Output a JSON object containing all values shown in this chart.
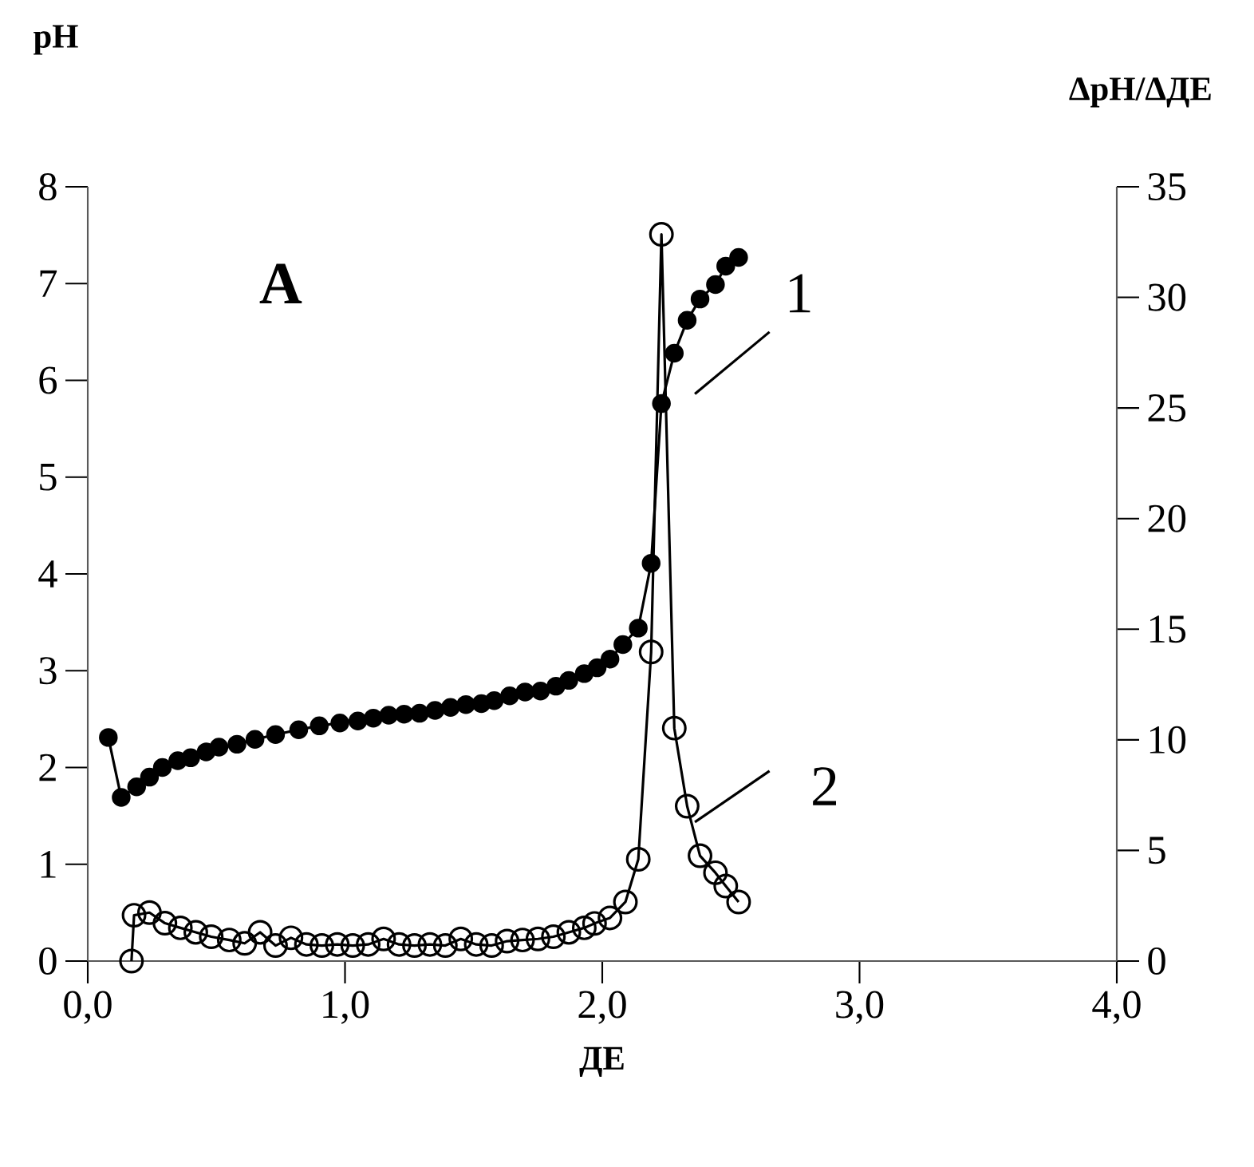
{
  "chart_data": {
    "type": "line",
    "xlabel": "ДЕ",
    "ylabel": "pH",
    "y2label": "ΔpH/ΔДЕ",
    "annotations": [
      "A"
    ],
    "xlim": [
      0,
      4
    ],
    "xticks": [
      {
        "value": 0,
        "label": "0,0"
      },
      {
        "value": 1,
        "label": "1,0"
      },
      {
        "value": 2,
        "label": "2,0"
      },
      {
        "value": 3,
        "label": "3,0"
      },
      {
        "value": 4,
        "label": "4,0"
      }
    ],
    "ylim": [
      0,
      8
    ],
    "yticks": [
      0,
      1,
      2,
      3,
      4,
      5,
      6,
      7,
      8
    ],
    "y2lim": [
      0,
      35
    ],
    "y2ticks": [
      0,
      5,
      10,
      15,
      20,
      25,
      30,
      35
    ],
    "grid": false,
    "marker": "circle",
    "line_style": "solid",
    "series": [
      {
        "name": "1",
        "color": "#000000",
        "x": [
          0.08,
          0.13,
          0.19,
          0.24,
          0.29,
          0.35,
          0.4,
          0.46,
          0.51,
          0.58,
          0.65,
          0.73,
          0.82,
          0.9,
          0.98,
          1.05,
          1.11,
          1.17,
          1.23,
          1.29,
          1.35,
          1.41,
          1.47,
          1.53,
          1.58,
          1.64,
          1.7,
          1.76,
          1.82,
          1.87,
          1.93,
          1.98,
          2.03,
          2.08,
          2.14,
          2.19,
          2.23,
          2.28,
          2.33,
          2.38,
          2.44,
          2.48,
          2.53
        ],
        "values": [
          2.31,
          1.69,
          1.8,
          1.9,
          2.0,
          2.07,
          2.1,
          2.16,
          2.21,
          2.24,
          2.29,
          2.34,
          2.39,
          2.43,
          2.46,
          2.48,
          2.51,
          2.54,
          2.55,
          2.56,
          2.59,
          2.62,
          2.65,
          2.66,
          2.69,
          2.74,
          2.78,
          2.79,
          2.84,
          2.9,
          2.97,
          3.03,
          3.12,
          3.27,
          3.44,
          4.11,
          5.76,
          6.28,
          6.62,
          6.84,
          6.99,
          7.18,
          7.27
        ]
      },
      {
        "name": "2",
        "color": "#000000",
        "axis": "y2",
        "x": [
          0.17,
          0.18,
          0.24,
          0.3,
          0.36,
          0.42,
          0.48,
          0.55,
          0.61,
          0.67,
          0.73,
          0.79,
          0.85,
          0.91,
          0.97,
          1.03,
          1.09,
          1.15,
          1.21,
          1.27,
          1.33,
          1.39,
          1.45,
          1.51,
          1.57,
          1.63,
          1.69,
          1.75,
          1.81,
          1.87,
          1.93,
          1.97,
          2.03,
          2.09,
          2.14,
          2.19,
          2.23,
          2.28,
          2.33,
          2.38,
          2.44,
          2.48,
          2.53
        ],
        "values": [
          0,
          2.07,
          2.19,
          1.71,
          1.5,
          1.3,
          1.1,
          0.95,
          0.8,
          1.3,
          0.7,
          1.05,
          0.75,
          0.7,
          0.75,
          0.7,
          0.75,
          1.0,
          0.75,
          0.7,
          0.75,
          0.7,
          1.0,
          0.75,
          0.7,
          0.9,
          0.95,
          1.0,
          1.1,
          1.3,
          1.5,
          1.7,
          1.95,
          2.67,
          4.6,
          13.97,
          32.85,
          10.53,
          7.0,
          4.76,
          3.99,
          3.39,
          2.67
        ]
      }
    ]
  }
}
